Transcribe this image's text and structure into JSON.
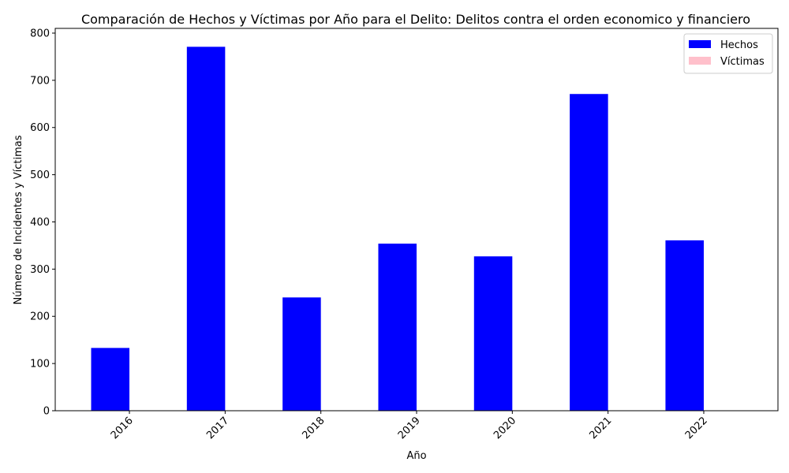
{
  "chart_data": {
    "type": "bar",
    "title": "Comparación de Hechos y Víctimas por Año para el Delito: Delitos contra el orden economico y financiero",
    "xlabel": "Año",
    "ylabel": "Número de Incidentes y Víctimas",
    "categories": [
      "2016",
      "2017",
      "2018",
      "2019",
      "2020",
      "2021",
      "2022"
    ],
    "series": [
      {
        "name": "Hechos",
        "color": "#0000ff",
        "values": [
          133,
          771,
          240,
          354,
          327,
          671,
          361
        ]
      },
      {
        "name": "Víctimas",
        "color": "#ffc0cb",
        "values": [
          0,
          0,
          0,
          0,
          0,
          0,
          0
        ]
      }
    ],
    "ylim": [
      0,
      810
    ],
    "yticks": [
      0,
      100,
      200,
      300,
      400,
      500,
      600,
      700,
      800
    ],
    "grid": false,
    "legend_position": "top-right"
  }
}
